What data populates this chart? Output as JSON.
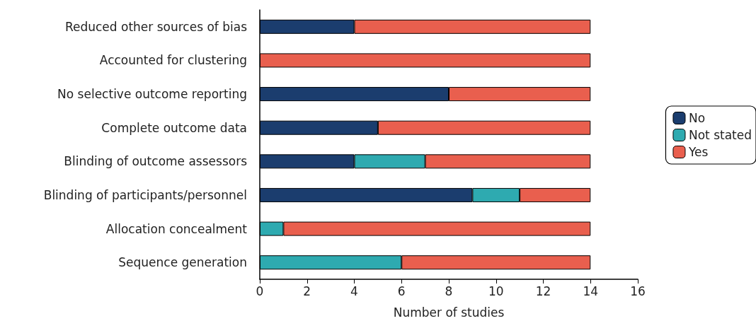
{
  "chart_data": {
    "type": "bar",
    "orientation": "horizontal",
    "stacked": true,
    "xlabel": "Number of studies",
    "categories": [
      "Reduced other sources of bias",
      "Accounted for clustering",
      "No selective outcome reporting",
      "Complete outcome data",
      "Blinding of outcome assessors",
      "Blinding of participants/personnel",
      "Allocation concealment",
      "Sequence generation"
    ],
    "series": [
      {
        "name": "No",
        "color": "#1b3d6e",
        "values": [
          4,
          0,
          8,
          5,
          4,
          9,
          0,
          0
        ]
      },
      {
        "name": "Not stated",
        "color": "#2eaab0",
        "values": [
          0,
          0,
          0,
          0,
          3,
          2,
          1,
          6
        ]
      },
      {
        "name": "Yes",
        "color": "#e95f4e",
        "values": [
          10,
          14,
          6,
          9,
          7,
          3,
          13,
          8
        ]
      }
    ],
    "xlim": [
      0,
      16
    ],
    "xticks": [
      0,
      2,
      4,
      6,
      8,
      10,
      12,
      14,
      16
    ],
    "grid": false,
    "legend": "right"
  }
}
